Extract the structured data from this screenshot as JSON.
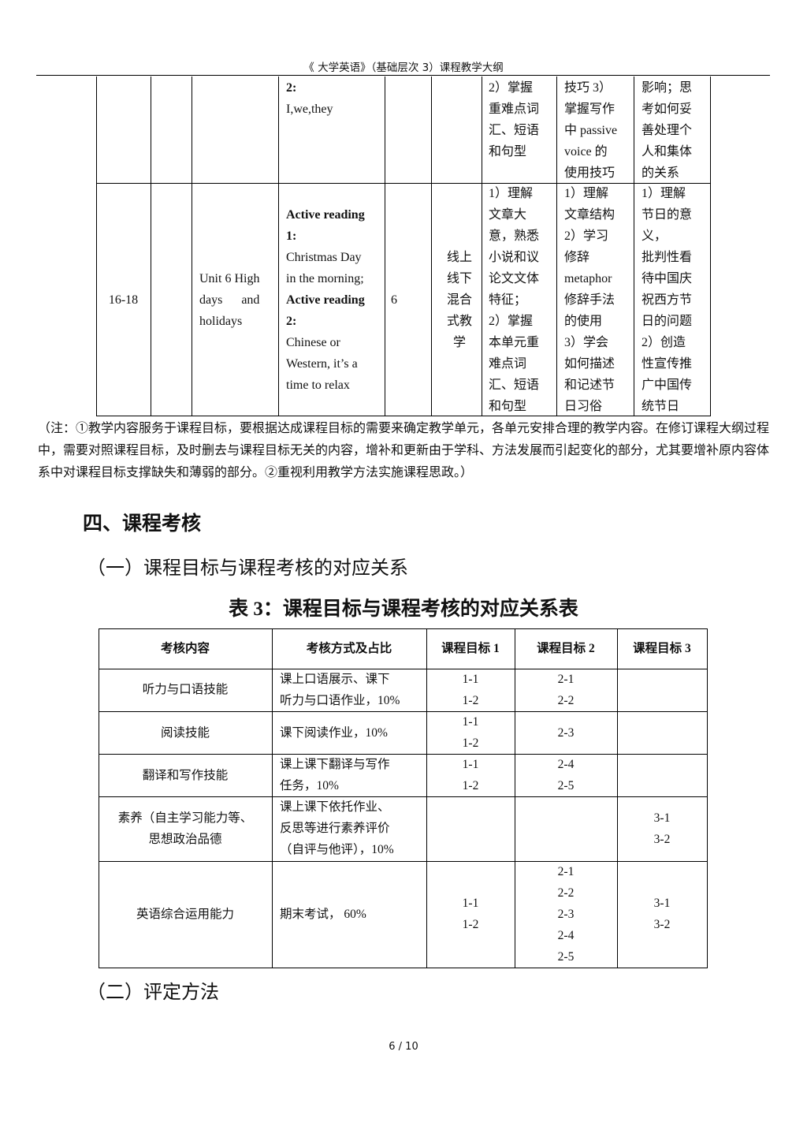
{
  "header": {
    "title": "《 大学英语》（基础层次 3）课程教学大纲"
  },
  "schedule_table": {
    "rows": [
      {
        "week": "",
        "col2": "",
        "unit": "",
        "content_bold1": "2:",
        "content_text1": "I,we,they",
        "hours": "",
        "method": "",
        "goal_a": "2）掌握\n重难点词\n汇、短语\n和句型",
        "goal_b": "技巧 3）\n掌握写作\n中 passive\nvoice 的\n使用技巧",
        "goal_c": "影响；思\n考如何妥\n善处理个\n人和集体\n的关系"
      },
      {
        "week": "16-18",
        "col2": "",
        "unit": "Unit 6 High\ndays      and\nholidays",
        "content_bold1": "Active reading\n1:",
        "content_text1": "Christmas Day\nin the morning;",
        "content_bold2": "Active reading\n2:",
        "content_text2": "Chinese or\nWestern, it’s a\ntime to relax",
        "hours": "6",
        "method": "线上\n线下\n混合\n式教\n学",
        "goal_a": "1）理解\n文章大\n意，熟悉\n小说和议\n论文文体\n特征；\n2）掌握\n本单元重\n难点词\n汇、短语\n和句型",
        "goal_b": "1）理解\n文章结构\n2）学习\n修辞\nmetaphor\n修辞手法\n的使用\n3）学会\n如何描述\n和记述节\n日习俗",
        "goal_c": "1）理解\n节日的意\n义，\n批判性看\n待中国庆\n祝西方节\n日的问题\n2）创造\n性宣传推\n广中国传\n统节日"
      }
    ]
  },
  "note": "（注：①教学内容服务于课程目标，要根据达成课程目标的需要来确定教学单元，各单元安排合理的教学内容。在修订课程大纲过程中，需要对照课程目标，及时删去与课程目标无关的内容，增补和更新由于学科、方法发展而引起变化的部分，尤其要增补原内容体系中对课程目标支撑缺失和薄弱的部分。②重视利用教学方法实施课程思政。）",
  "section_title": "四、课程考核",
  "subsection1": "（一）课程目标与课程考核的对应关系",
  "table3": {
    "caption": "表 3：课程目标与课程考核的对应关系表",
    "headers": [
      "考核内容",
      "考核方式及占比",
      "课程目标 1",
      "课程目标 2",
      "课程目标 3"
    ],
    "rows": [
      [
        "听力与口语技能",
        "课上口语展示、课下\n听力与口语作业，10%",
        "1-1\n1-2",
        "2-1\n2-2",
        ""
      ],
      [
        "阅读技能",
        "课下阅读作业，10%",
        "1-1\n1-2",
        "2-3",
        ""
      ],
      [
        "翻译和写作技能",
        "课上课下翻译与写作\n任务，10%",
        "1-1\n1-2",
        "2-4\n2-5",
        ""
      ],
      [
        "素养（自主学习能力等、\n思想政治品德",
        "课上课下依托作业、\n反思等进行素养评价\n（自评与他评），10%",
        "",
        "",
        "3-1\n3-2"
      ],
      [
        "英语综合运用能力",
        "期末考试，  60%",
        "1-1\n1-2",
        "2-1\n2-2\n2-3\n2-4\n2-5",
        "3-1\n3-2"
      ]
    ]
  },
  "subsection2": "（二）评定方法",
  "footer": {
    "page": "6 / 10"
  }
}
